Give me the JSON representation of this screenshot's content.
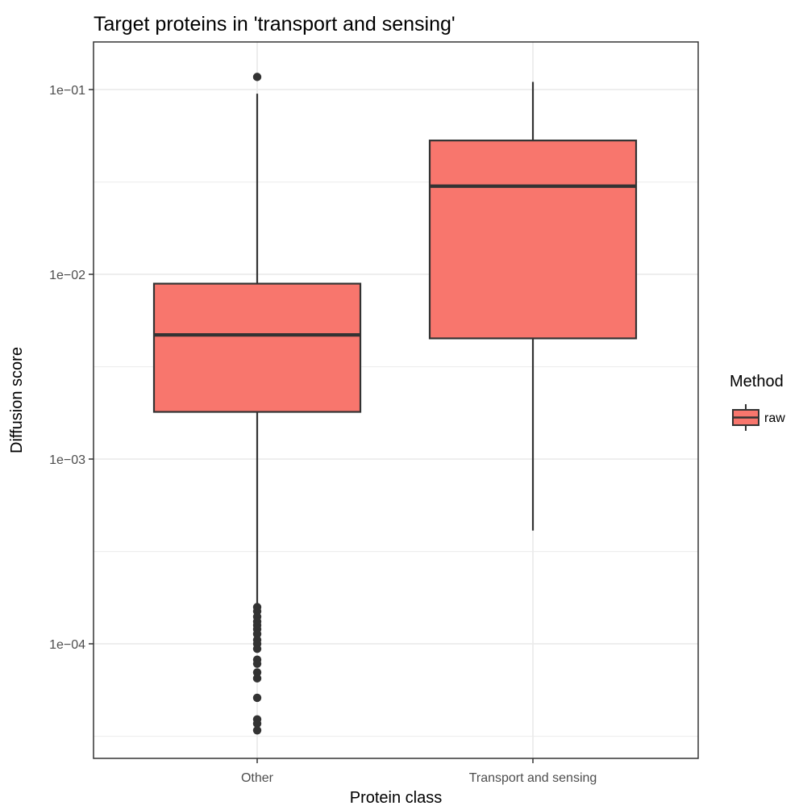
{
  "chart_data": {
    "type": "box",
    "title": "Target proteins in 'transport and sensing'",
    "xlabel": "Protein class",
    "ylabel": "Diffusion score",
    "y_scale": "log10",
    "ylim": [
      2.8e-05,
      0.16
    ],
    "y_ticks": [
      0.0001,
      0.001,
      0.01,
      0.1
    ],
    "y_tick_labels": [
      "1e−04",
      "1e−03",
      "1e−02",
      "1e−01"
    ],
    "y_minor_ticks": [
      3.16e-05,
      0.000316,
      0.00316,
      0.0316
    ],
    "categories": [
      "Other",
      "Transport and sensing"
    ],
    "grid": true,
    "legend": {
      "title": "Method",
      "position": "right",
      "entries": [
        "raw"
      ]
    },
    "series": [
      {
        "name": "raw",
        "color": "#F8766D",
        "boxes": [
          {
            "category": "Other",
            "whisker_low": 0.000162,
            "q1": 0.0018,
            "median": 0.0047,
            "q3": 0.0089,
            "whisker_high": 0.095,
            "outliers": [
              0.117,
              0.000158,
              0.00015,
              0.00014,
              0.000132,
              0.000126,
              0.00012,
              0.000113,
              0.000105,
              0.0001,
              9.4e-05,
              8.2e-05,
              7.8e-05,
              7e-05,
              6.5e-05,
              5.1e-05,
              3.9e-05,
              3.7e-05,
              3.4e-05
            ]
          },
          {
            "category": "Transport and sensing",
            "whisker_low": 0.00041,
            "q1": 0.0045,
            "median": 0.03,
            "q3": 0.053,
            "whisker_high": 0.11,
            "outliers": []
          }
        ]
      }
    ]
  }
}
